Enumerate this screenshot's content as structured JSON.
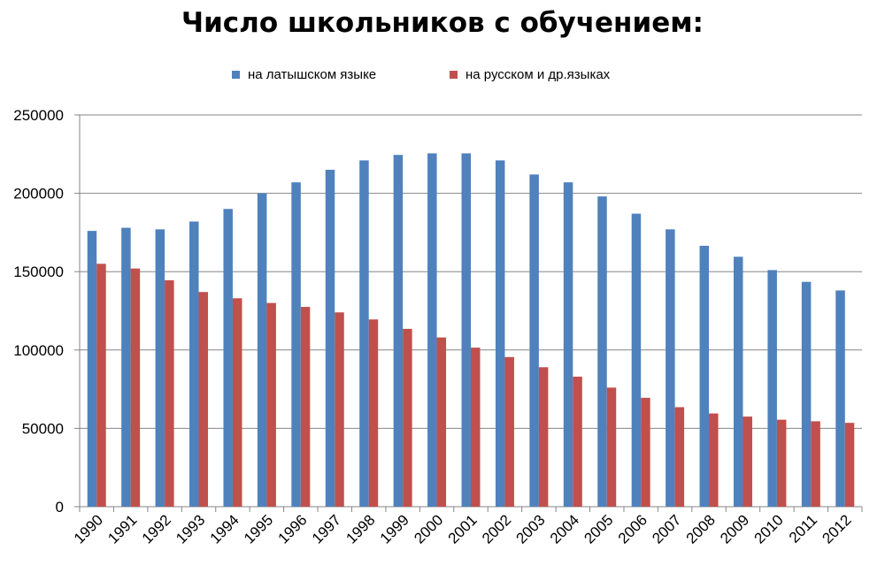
{
  "chart_data": {
    "type": "bar",
    "title": "Число школьников с обучением:",
    "categories": [
      "1990",
      "1991",
      "1992",
      "1993",
      "1994",
      "1995",
      "1996",
      "1997",
      "1998",
      "1999",
      "2000",
      "2001",
      "2002",
      "2003",
      "2004",
      "2005",
      "2006",
      "2007",
      "2008",
      "2009",
      "2010",
      "2011",
      "2012"
    ],
    "series": [
      {
        "name": "на латышском языке",
        "color": "#4f81bd",
        "values": [
          176000,
          178000,
          177000,
          182000,
          190000,
          200000,
          207000,
          215000,
          221000,
          224500,
          225500,
          225500,
          221000,
          212000,
          207000,
          198000,
          187000,
          177000,
          166500,
          159500,
          151000,
          143500,
          138000
        ]
      },
      {
        "name": "на русском и др.языках",
        "color": "#c0504d",
        "values": [
          155000,
          152000,
          144500,
          137000,
          133000,
          130000,
          127500,
          124000,
          119500,
          113500,
          108000,
          101500,
          95500,
          89000,
          83000,
          76000,
          69500,
          63500,
          59500,
          57500,
          55500,
          54500,
          53500
        ]
      }
    ],
    "ylim": [
      0,
      250000
    ],
    "yticks": [
      0,
      50000,
      100000,
      150000,
      200000,
      250000
    ],
    "ytick_labels": [
      "0",
      "50000",
      "100000",
      "150000",
      "200000",
      "250000"
    ],
    "grid": true,
    "legend_position": "top",
    "xlabel": "",
    "ylabel": ""
  }
}
